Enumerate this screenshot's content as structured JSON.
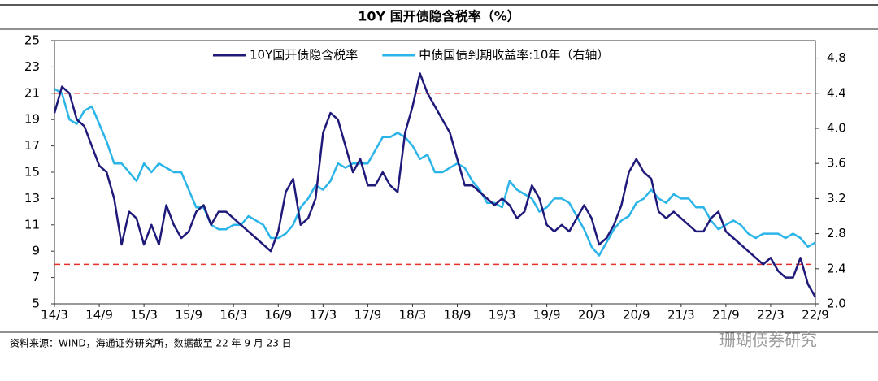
{
  "chart_data": {
    "type": "line",
    "title": "10Y 国开债隐含税率（%）",
    "source": "资料来源：WIND，海通证券研究所，数据截至 22 年 9 月 23 日",
    "watermark": "珊瑚债券研究",
    "categories": [
      "14/3",
      null,
      null,
      null,
      null,
      null,
      "14/9",
      null,
      null,
      null,
      null,
      null,
      "15/3",
      null,
      null,
      null,
      null,
      null,
      "15/9",
      null,
      null,
      null,
      null,
      null,
      "16/3",
      null,
      null,
      null,
      null,
      null,
      "16/9",
      null,
      null,
      null,
      null,
      null,
      "17/3",
      null,
      null,
      null,
      null,
      null,
      "17/9",
      null,
      null,
      null,
      null,
      null,
      "18/3",
      null,
      null,
      null,
      null,
      null,
      "18/9",
      null,
      null,
      null,
      null,
      null,
      "19/3",
      null,
      null,
      null,
      null,
      null,
      "19/9",
      null,
      null,
      null,
      null,
      null,
      "20/3",
      null,
      null,
      null,
      null,
      null,
      "20/9",
      null,
      null,
      null,
      null,
      null,
      "21/3",
      null,
      null,
      null,
      null,
      null,
      "21/9",
      null,
      null,
      null,
      null,
      null,
      "22/3",
      null,
      null,
      null,
      null,
      null,
      "22/9"
    ],
    "series": [
      {
        "name": "10Y国开债隐含税率",
        "color": "#1f1a7a",
        "values": [
          19.5,
          21.5,
          21,
          19,
          18.5,
          17,
          15.5,
          15,
          13,
          9.5,
          12,
          11.5,
          9.5,
          11,
          9.5,
          12.5,
          11,
          10,
          10.5,
          12,
          12.5,
          11,
          12,
          12,
          11.5,
          11,
          10.5,
          10,
          9.5,
          9,
          10.5,
          13.5,
          14.5,
          11,
          11.5,
          13,
          18,
          19.5,
          19,
          17,
          15,
          16,
          14,
          14,
          15,
          14,
          13.5,
          18,
          20,
          22.5,
          21,
          20,
          19,
          18,
          16,
          14,
          14,
          13.5,
          13,
          12.5,
          13,
          12.5,
          11.5,
          12,
          14,
          13,
          11,
          10.5,
          11,
          10.5,
          11.5,
          12.5,
          11.5,
          9.5,
          10,
          11,
          12.5,
          15,
          16,
          15,
          14.5,
          12,
          11.5,
          12,
          11.5,
          11,
          10.5,
          10.5,
          11.5,
          12,
          10.5,
          10,
          9.5,
          9,
          8.5,
          8,
          8.5,
          7.5,
          7,
          7,
          8.5,
          6.5,
          5.5
        ]
      },
      {
        "name": "中债国债到期收益率:10年（右轴）",
        "color": "#2ab4e8",
        "axis": "y2",
        "values": [
          4.45,
          4.4,
          4.1,
          4.05,
          4.2,
          4.25,
          4.05,
          3.85,
          3.6,
          3.6,
          3.5,
          3.4,
          3.6,
          3.5,
          3.6,
          3.55,
          3.5,
          3.5,
          3.3,
          3.1,
          3.1,
          2.9,
          2.85,
          2.85,
          2.9,
          2.9,
          3.0,
          2.95,
          2.9,
          2.75,
          2.75,
          2.8,
          2.9,
          3.1,
          3.2,
          3.35,
          3.3,
          3.4,
          3.6,
          3.55,
          3.6,
          3.6,
          3.6,
          3.75,
          3.9,
          3.9,
          3.95,
          3.9,
          3.8,
          3.65,
          3.7,
          3.5,
          3.5,
          3.55,
          3.6,
          3.55,
          3.4,
          3.3,
          3.15,
          3.15,
          3.1,
          3.4,
          3.3,
          3.25,
          3.2,
          3.05,
          3.1,
          3.2,
          3.2,
          3.15,
          3.0,
          2.85,
          2.65,
          2.55,
          2.7,
          2.85,
          2.95,
          3.0,
          3.15,
          3.2,
          3.3,
          3.2,
          3.15,
          3.25,
          3.2,
          3.2,
          3.1,
          3.1,
          2.95,
          2.85,
          2.9,
          2.95,
          2.9,
          2.8,
          2.75,
          2.8,
          2.8,
          2.8,
          2.75,
          2.8,
          2.75,
          2.65,
          2.7
        ]
      }
    ],
    "ylim": [
      5,
      25
    ],
    "yticks": [
      5,
      7,
      9,
      11,
      13,
      15,
      17,
      19,
      21,
      23,
      25
    ],
    "y2lim": [
      2,
      5
    ],
    "y2ticks": [
      {
        "value": 2,
        "label": "2.0"
      },
      2.4,
      2.8,
      3.2,
      3.6,
      {
        "value": 4,
        "label": "4.0"
      },
      4.4,
      4.8
    ],
    "reference_lines": [
      21,
      8
    ],
    "reference_color": "#e8302a",
    "legend": "top"
  }
}
